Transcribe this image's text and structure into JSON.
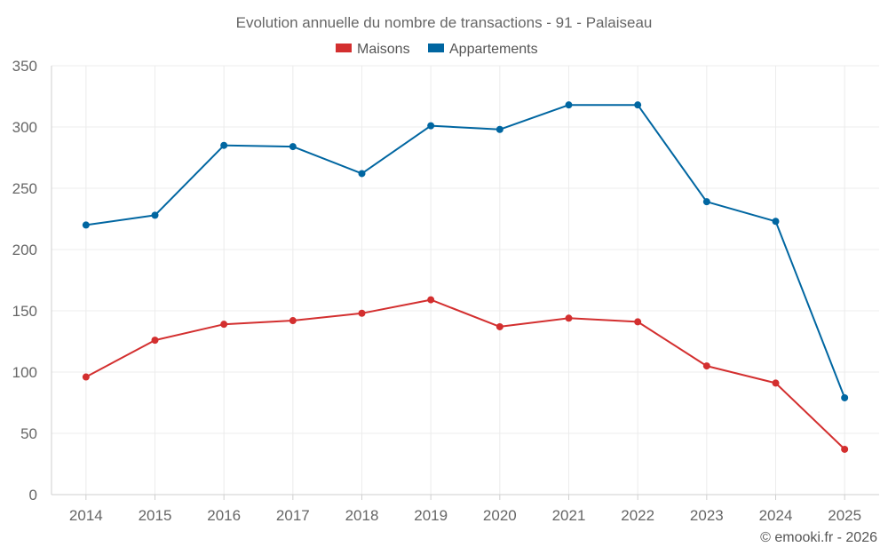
{
  "chart_data": {
    "type": "line",
    "title": "Evolution annuelle du nombre de transactions - 91 - Palaiseau",
    "xlabel": "",
    "ylabel": "",
    "categories": [
      "2014",
      "2015",
      "2016",
      "2017",
      "2018",
      "2019",
      "2020",
      "2021",
      "2022",
      "2023",
      "2024",
      "2025"
    ],
    "ylim": [
      0,
      350
    ],
    "yticks": [
      0,
      50,
      100,
      150,
      200,
      250,
      300,
      350
    ],
    "grid": true,
    "legend_position": "top-center",
    "series": [
      {
        "name": "Maisons",
        "color": "#d32f2f",
        "values": [
          96,
          126,
          139,
          142,
          148,
          159,
          137,
          144,
          141,
          105,
          91,
          37
        ]
      },
      {
        "name": "Appartements",
        "color": "#0066a1",
        "values": [
          220,
          228,
          285,
          284,
          262,
          301,
          298,
          318,
          318,
          239,
          223,
          79
        ]
      }
    ]
  },
  "credit": "© emooki.fr - 2026"
}
